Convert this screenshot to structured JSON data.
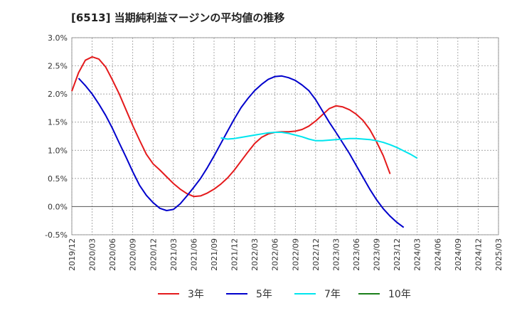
{
  "chart_data": {
    "type": "line",
    "title": "[6513]  当期純利益マージンの平均値の推移",
    "xlabel": "",
    "ylabel": "",
    "ylim": [
      -0.5,
      3.0
    ],
    "y_ticks": [
      "3.0%",
      "2.5%",
      "2.0%",
      "1.5%",
      "1.0%",
      "0.5%",
      "0.0%",
      "-0.5%"
    ],
    "y_tick_values": [
      3.0,
      2.5,
      2.0,
      1.5,
      1.0,
      0.5,
      0.0,
      -0.5
    ],
    "x_ticks": [
      "2019/12",
      "2020/03",
      "2020/06",
      "2020/09",
      "2020/12",
      "2021/03",
      "2021/06",
      "2021/09",
      "2021/12",
      "2022/03",
      "2022/06",
      "2022/09",
      "2022/12",
      "2023/03",
      "2023/06",
      "2023/09",
      "2023/12",
      "2024/03",
      "2024/06",
      "2024/09",
      "2024/12",
      "2025/03"
    ],
    "grid": true,
    "legend_position": "bottom",
    "series": [
      {
        "name": "3年",
        "color": "#e41a1c",
        "start_index": 0,
        "values": [
          2.05,
          2.38,
          2.6,
          2.66,
          2.62,
          2.48,
          2.25,
          2.0,
          1.72,
          1.44,
          1.18,
          0.93,
          0.76,
          0.65,
          0.53,
          0.41,
          0.31,
          0.23,
          0.18,
          0.19,
          0.24,
          0.31,
          0.4,
          0.51,
          0.65,
          0.81,
          0.97,
          1.12,
          1.23,
          1.29,
          1.32,
          1.33,
          1.33,
          1.34,
          1.37,
          1.43,
          1.52,
          1.63,
          1.74,
          1.79,
          1.77,
          1.72,
          1.64,
          1.53,
          1.37,
          1.15,
          0.9,
          0.58
        ]
      },
      {
        "name": "5年",
        "color": "#0000cc",
        "start_index": 1,
        "values": [
          2.28,
          2.15,
          2.0,
          1.82,
          1.62,
          1.39,
          1.13,
          0.88,
          0.62,
          0.38,
          0.2,
          0.07,
          -0.03,
          -0.07,
          -0.05,
          0.05,
          0.19,
          0.34,
          0.5,
          0.69,
          0.9,
          1.12,
          1.34,
          1.56,
          1.76,
          1.92,
          2.06,
          2.17,
          2.26,
          2.31,
          2.32,
          2.29,
          2.24,
          2.16,
          2.06,
          1.9,
          1.7,
          1.5,
          1.32,
          1.13,
          0.94,
          0.73,
          0.52,
          0.31,
          0.12,
          -0.04,
          -0.17,
          -0.28,
          -0.37
        ]
      },
      {
        "name": "7年",
        "color": "#00e5ee",
        "start_index": 22,
        "values": [
          1.22,
          1.2,
          1.21,
          1.23,
          1.25,
          1.27,
          1.29,
          1.31,
          1.32,
          1.32,
          1.3,
          1.27,
          1.24,
          1.2,
          1.17,
          1.17,
          1.18,
          1.19,
          1.2,
          1.21,
          1.21,
          1.2,
          1.19,
          1.17,
          1.14,
          1.1,
          1.05,
          0.99,
          0.93,
          0.86
        ]
      },
      {
        "name": "10年",
        "color": "#1a7f1a",
        "start_index": 0,
        "values": []
      }
    ]
  }
}
